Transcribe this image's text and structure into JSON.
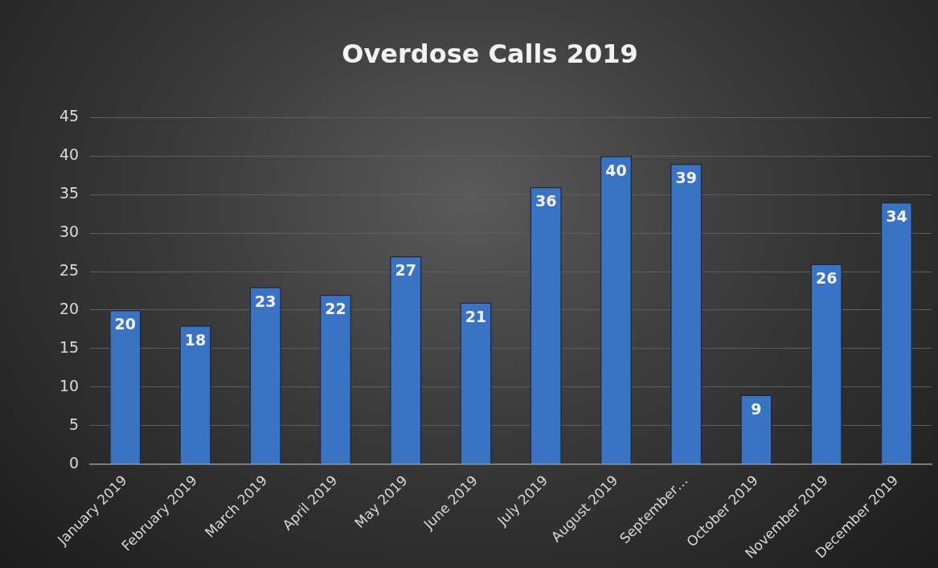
{
  "chart_data": {
    "type": "bar",
    "title": "Overdose Calls 2019",
    "categories": [
      "January 2019",
      "February 2019",
      "March 2019",
      "April 2019",
      "May 2019",
      "June 2019",
      "July 2019",
      "August 2019",
      "September…",
      "October 2019",
      "November 2019",
      "December 2019"
    ],
    "values": [
      20,
      18,
      23,
      22,
      27,
      21,
      36,
      40,
      39,
      9,
      26,
      34
    ],
    "color": "#3b73c4",
    "ylim": [
      0,
      45
    ],
    "yticks": [
      0,
      5,
      10,
      15,
      20,
      25,
      30,
      35,
      40,
      45
    ],
    "grid": "y",
    "data_labels": true
  }
}
